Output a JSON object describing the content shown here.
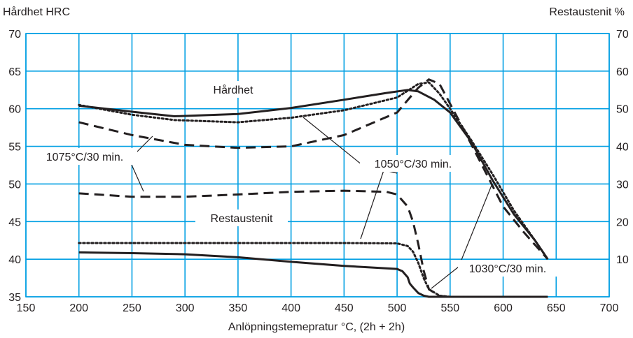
{
  "chart_data": {
    "type": "line",
    "xlabel": "Anlöpningstemepratur °C, (2h + 2h)",
    "ylabel_left": "Hårdhet HRC",
    "ylabel_right": "Restaustenit %",
    "xlim": [
      150,
      700
    ],
    "ylim_left": [
      35,
      70
    ],
    "ylim_right": [
      0,
      70
    ],
    "x_ticks": [
      "150",
      "200",
      "250",
      "300",
      "350",
      "400",
      "450",
      "500",
      "550",
      "600",
      "650",
      "700"
    ],
    "y_ticks_left": [
      "35",
      "40",
      "45",
      "50",
      "55",
      "60",
      "65",
      "70"
    ],
    "y_ticks_right": [
      "10",
      "20",
      "30",
      "40",
      "50",
      "60",
      "70"
    ],
    "grid": true,
    "group_labels": {
      "hardness": "Hårdhet",
      "retained_austenite": "Restaustenit"
    },
    "series": [
      {
        "name": "1030°C/30 min.",
        "axis": "left",
        "style": "solid",
        "x": [
          200,
          250,
          290,
          350,
          400,
          450,
          490,
          510,
          520,
          535,
          550,
          570,
          590,
          610,
          630,
          642
        ],
        "y": [
          60.4,
          59.6,
          59.0,
          59.3,
          60.1,
          61.2,
          62.1,
          62.5,
          62.3,
          61.2,
          59.5,
          55.6,
          50.5,
          46.0,
          42.5,
          40.0
        ]
      },
      {
        "name": "1050°C/30 min.",
        "axis": "left",
        "style": "dotted",
        "x": [
          200,
          250,
          290,
          350,
          400,
          450,
          500,
          520,
          530,
          540,
          550,
          570,
          590,
          610,
          630,
          642
        ],
        "y": [
          60.5,
          59.2,
          58.5,
          58.2,
          58.8,
          59.8,
          61.5,
          63.3,
          63.5,
          62.0,
          60.0,
          55.8,
          51.3,
          46.5,
          42.5,
          40.0
        ]
      },
      {
        "name": "1075°C/30 min.",
        "axis": "left",
        "style": "dashed",
        "x": [
          200,
          250,
          300,
          350,
          400,
          450,
          500,
          520,
          530,
          540,
          560,
          580,
          600,
          620,
          642
        ],
        "y": [
          58.2,
          56.5,
          55.2,
          54.8,
          55.0,
          56.5,
          59.5,
          62.8,
          63.9,
          63.3,
          58.0,
          52.5,
          47.0,
          43.5,
          40.0
        ]
      },
      {
        "name": "1030°C/30 min.",
        "axis": "right",
        "style": "solid",
        "x": [
          200,
          250,
          300,
          350,
          400,
          450,
          500,
          505,
          510,
          512,
          515,
          520,
          525,
          530,
          550,
          600,
          642
        ],
        "y": [
          11.8,
          11.6,
          11.3,
          10.5,
          9.3,
          8.2,
          7.4,
          6.8,
          5.2,
          3.5,
          2.5,
          1.0,
          0.3,
          0.0,
          0.0,
          0.0,
          0.0
        ]
      },
      {
        "name": "1050°C/30 min.",
        "axis": "right",
        "style": "dotted",
        "x": [
          200,
          250,
          300,
          350,
          400,
          450,
          500,
          510,
          515,
          520,
          525,
          530,
          540,
          550,
          600,
          642
        ],
        "y": [
          14.3,
          14.3,
          14.3,
          14.3,
          14.3,
          14.3,
          14.2,
          13.5,
          12.0,
          9.0,
          5.0,
          2.0,
          0.3,
          0.0,
          0.0,
          0.0
        ]
      },
      {
        "name": "1075°C/30 min.",
        "axis": "right",
        "style": "dashed",
        "x": [
          200,
          250,
          300,
          350,
          400,
          450,
          490,
          500,
          510,
          515,
          520,
          525,
          530,
          540,
          550,
          600,
          642
        ],
        "y": [
          27.5,
          26.6,
          26.6,
          27.2,
          27.9,
          28.2,
          27.9,
          27.2,
          24.0,
          20.0,
          14.0,
          7.0,
          2.0,
          0.2,
          0.0,
          0.0,
          0.0
        ]
      }
    ]
  }
}
